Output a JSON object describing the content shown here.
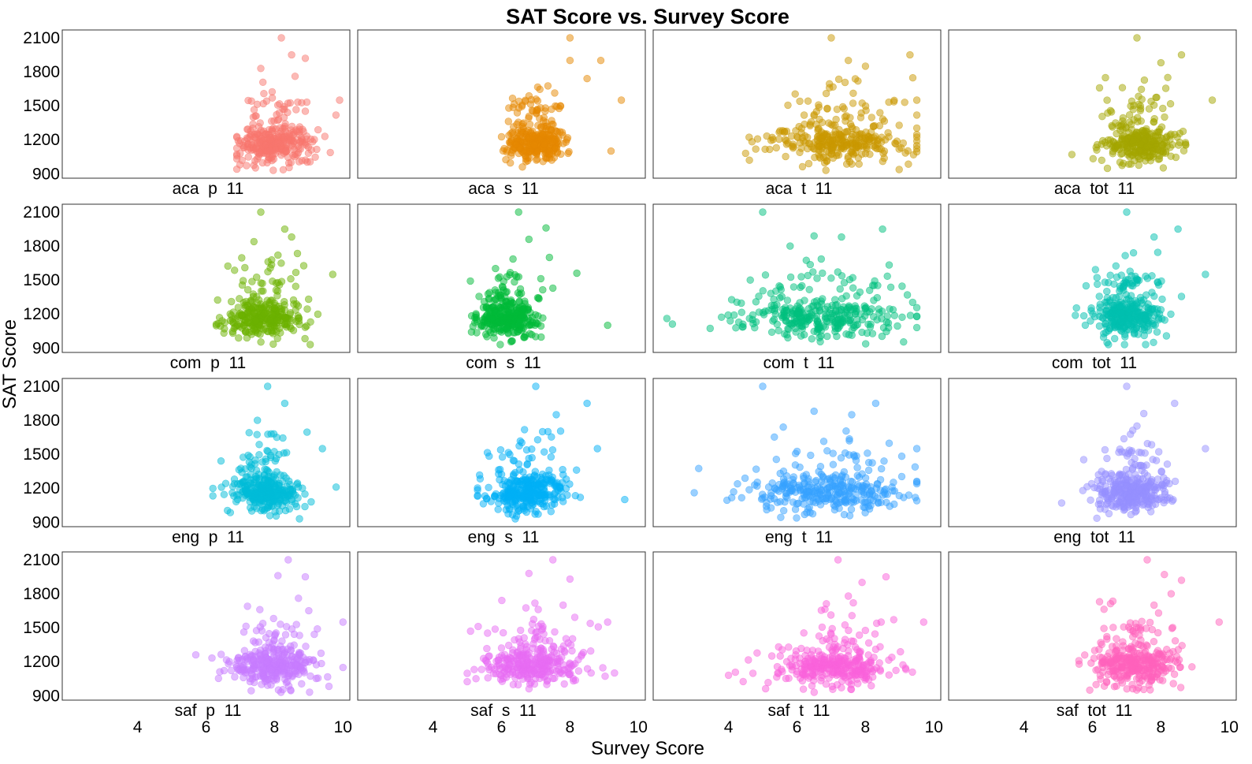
{
  "chart_data": {
    "type": "scatter",
    "title": "SAT Score vs. Survey Score",
    "xlabel": "Survey Score",
    "ylabel": "SAT Score",
    "xlim": [
      1.8,
      10.2
    ],
    "ylim": [
      860,
      2170
    ],
    "x_ticks": [
      "4",
      "6",
      "8",
      "10"
    ],
    "y_ticks": [
      "900",
      "1200",
      "1500",
      "1800",
      "2100"
    ],
    "grid": false,
    "layout": "4x4 facet grid",
    "panels": [
      {
        "label": "aca  p  11",
        "color": "#f8766d",
        "center": 8.0,
        "spread": 0.55,
        "min": 6.9,
        "max": 9.9,
        "outliers": [
          [
            9.9,
            1550
          ],
          [
            8.5,
            1950
          ],
          [
            8.2,
            2100
          ],
          [
            7.6,
            1830
          ],
          [
            8.9,
            1920
          ],
          [
            8.6,
            1760
          ]
        ]
      },
      {
        "label": "aca  s  11",
        "color": "#e58700",
        "center": 7.0,
        "spread": 0.45,
        "min": 6.0,
        "max": 9.5,
        "outliers": [
          [
            9.5,
            1550
          ],
          [
            8.0,
            1900
          ],
          [
            8.9,
            1900
          ],
          [
            8.5,
            1740
          ],
          [
            9.2,
            1100
          ],
          [
            8.0,
            2100
          ]
        ]
      },
      {
        "label": "aca  t  11",
        "color": "#c99800",
        "center": 7.2,
        "spread": 1.05,
        "min": 4.5,
        "max": 9.5,
        "outliers": [
          [
            4.5,
            1080
          ],
          [
            9.3,
            1950
          ],
          [
            7.5,
            1900
          ],
          [
            9.5,
            1550
          ],
          [
            7.0,
            2100
          ],
          [
            8.0,
            1850
          ]
        ]
      },
      {
        "label": "aca  tot  11",
        "color": "#a3a500",
        "center": 7.4,
        "spread": 0.5,
        "min": 5.4,
        "max": 9.5,
        "outliers": [
          [
            5.4,
            1070
          ],
          [
            9.5,
            1550
          ],
          [
            8.6,
            1950
          ],
          [
            7.3,
            2100
          ],
          [
            8.0,
            1880
          ],
          [
            8.2,
            1750
          ]
        ]
      },
      {
        "label": "com  p  11",
        "color": "#6bb100",
        "center": 7.7,
        "spread": 0.55,
        "min": 6.3,
        "max": 9.7,
        "outliers": [
          [
            9.7,
            1550
          ],
          [
            8.3,
            1950
          ],
          [
            7.6,
            2100
          ],
          [
            7.4,
            1840
          ],
          [
            8.5,
            1880
          ],
          [
            8.1,
            1720
          ]
        ]
      },
      {
        "label": "com  s  11",
        "color": "#00ba38",
        "center": 6.2,
        "spread": 0.45,
        "min": 5.0,
        "max": 9.1,
        "outliers": [
          [
            9.1,
            1100
          ],
          [
            8.2,
            1560
          ],
          [
            6.5,
            2100
          ],
          [
            7.3,
            1960
          ],
          [
            6.8,
            1860
          ],
          [
            7.4,
            1700
          ]
        ]
      },
      {
        "label": "com  t  11",
        "color": "#00bf7d",
        "center": 6.7,
        "spread": 1.15,
        "min": 2.2,
        "max": 9.5,
        "outliers": [
          [
            2.2,
            1160
          ],
          [
            8.5,
            1950
          ],
          [
            5.0,
            2100
          ],
          [
            6.5,
            1890
          ],
          [
            7.3,
            1880
          ],
          [
            5.8,
            1800
          ]
        ]
      },
      {
        "label": "com  tot  11",
        "color": "#00c0af",
        "center": 7.0,
        "spread": 0.5,
        "min": 5.5,
        "max": 9.3,
        "outliers": [
          [
            9.3,
            1550
          ],
          [
            7.0,
            2100
          ],
          [
            8.5,
            1950
          ],
          [
            7.8,
            1880
          ],
          [
            7.2,
            1740
          ]
        ]
      },
      {
        "label": "eng  p  11",
        "color": "#00bcd8",
        "center": 7.7,
        "spread": 0.5,
        "min": 6.2,
        "max": 9.8,
        "outliers": [
          [
            9.8,
            1210
          ],
          [
            9.4,
            1550
          ],
          [
            8.3,
            1950
          ],
          [
            7.8,
            2100
          ],
          [
            7.5,
            1800
          ],
          [
            7.9,
            1680
          ]
        ]
      },
      {
        "label": "eng  s  11",
        "color": "#00b0f6",
        "center": 6.8,
        "spread": 0.55,
        "min": 5.3,
        "max": 9.6,
        "outliers": [
          [
            9.6,
            1100
          ],
          [
            8.8,
            1550
          ],
          [
            7.0,
            2100
          ],
          [
            8.5,
            1950
          ],
          [
            7.6,
            1850
          ],
          [
            7.2,
            1700
          ]
        ]
      },
      {
        "label": "eng  t  11",
        "color": "#35a2ff",
        "center": 7.0,
        "spread": 1.15,
        "min": 3.0,
        "max": 9.5,
        "outliers": [
          [
            3.0,
            1160
          ],
          [
            9.5,
            1550
          ],
          [
            5.0,
            2100
          ],
          [
            8.3,
            1950
          ],
          [
            6.5,
            1880
          ],
          [
            7.6,
            1850
          ],
          [
            5.6,
            1740
          ]
        ]
      },
      {
        "label": "eng  tot  11",
        "color": "#9590ff",
        "center": 7.1,
        "spread": 0.55,
        "min": 5.1,
        "max": 9.3,
        "outliers": [
          [
            5.1,
            1070
          ],
          [
            9.3,
            1550
          ],
          [
            7.0,
            2100
          ],
          [
            8.4,
            1950
          ],
          [
            7.5,
            1860
          ],
          [
            7.3,
            1750
          ]
        ]
      },
      {
        "label": "saf  p  11",
        "color": "#c77cff",
        "center": 8.0,
        "spread": 0.65,
        "min": 5.7,
        "max": 10.0,
        "outliers": [
          [
            5.7,
            1260
          ],
          [
            10.0,
            1550
          ],
          [
            8.4,
            2100
          ],
          [
            8.1,
            1960
          ],
          [
            8.9,
            1950
          ],
          [
            8.7,
            1760
          ],
          [
            9.0,
            1650
          ]
        ]
      },
      {
        "label": "saf  s  11",
        "color": "#e76bf3",
        "center": 6.9,
        "spread": 0.75,
        "min": 5.0,
        "max": 9.3,
        "outliers": [
          [
            9.3,
            1100
          ],
          [
            9.1,
            1550
          ],
          [
            7.5,
            2100
          ],
          [
            6.8,
            1980
          ],
          [
            8.0,
            1930
          ],
          [
            7.8,
            1700
          ]
        ]
      },
      {
        "label": "saf  t  11",
        "color": "#fa62db",
        "center": 7.1,
        "spread": 0.95,
        "min": 4.0,
        "max": 9.7,
        "outliers": [
          [
            4.0,
            1080
          ],
          [
            9.7,
            1550
          ],
          [
            7.2,
            2100
          ],
          [
            8.6,
            1950
          ],
          [
            7.9,
            1900
          ],
          [
            7.5,
            1780
          ]
        ]
      },
      {
        "label": "saf  tot  11",
        "color": "#ff62bc",
        "center": 7.2,
        "spread": 0.6,
        "min": 5.5,
        "max": 9.7,
        "outliers": [
          [
            9.7,
            1550
          ],
          [
            7.6,
            2100
          ],
          [
            8.1,
            1970
          ],
          [
            8.6,
            1920
          ],
          [
            8.3,
            1800
          ],
          [
            7.8,
            1700
          ]
        ]
      }
    ]
  }
}
